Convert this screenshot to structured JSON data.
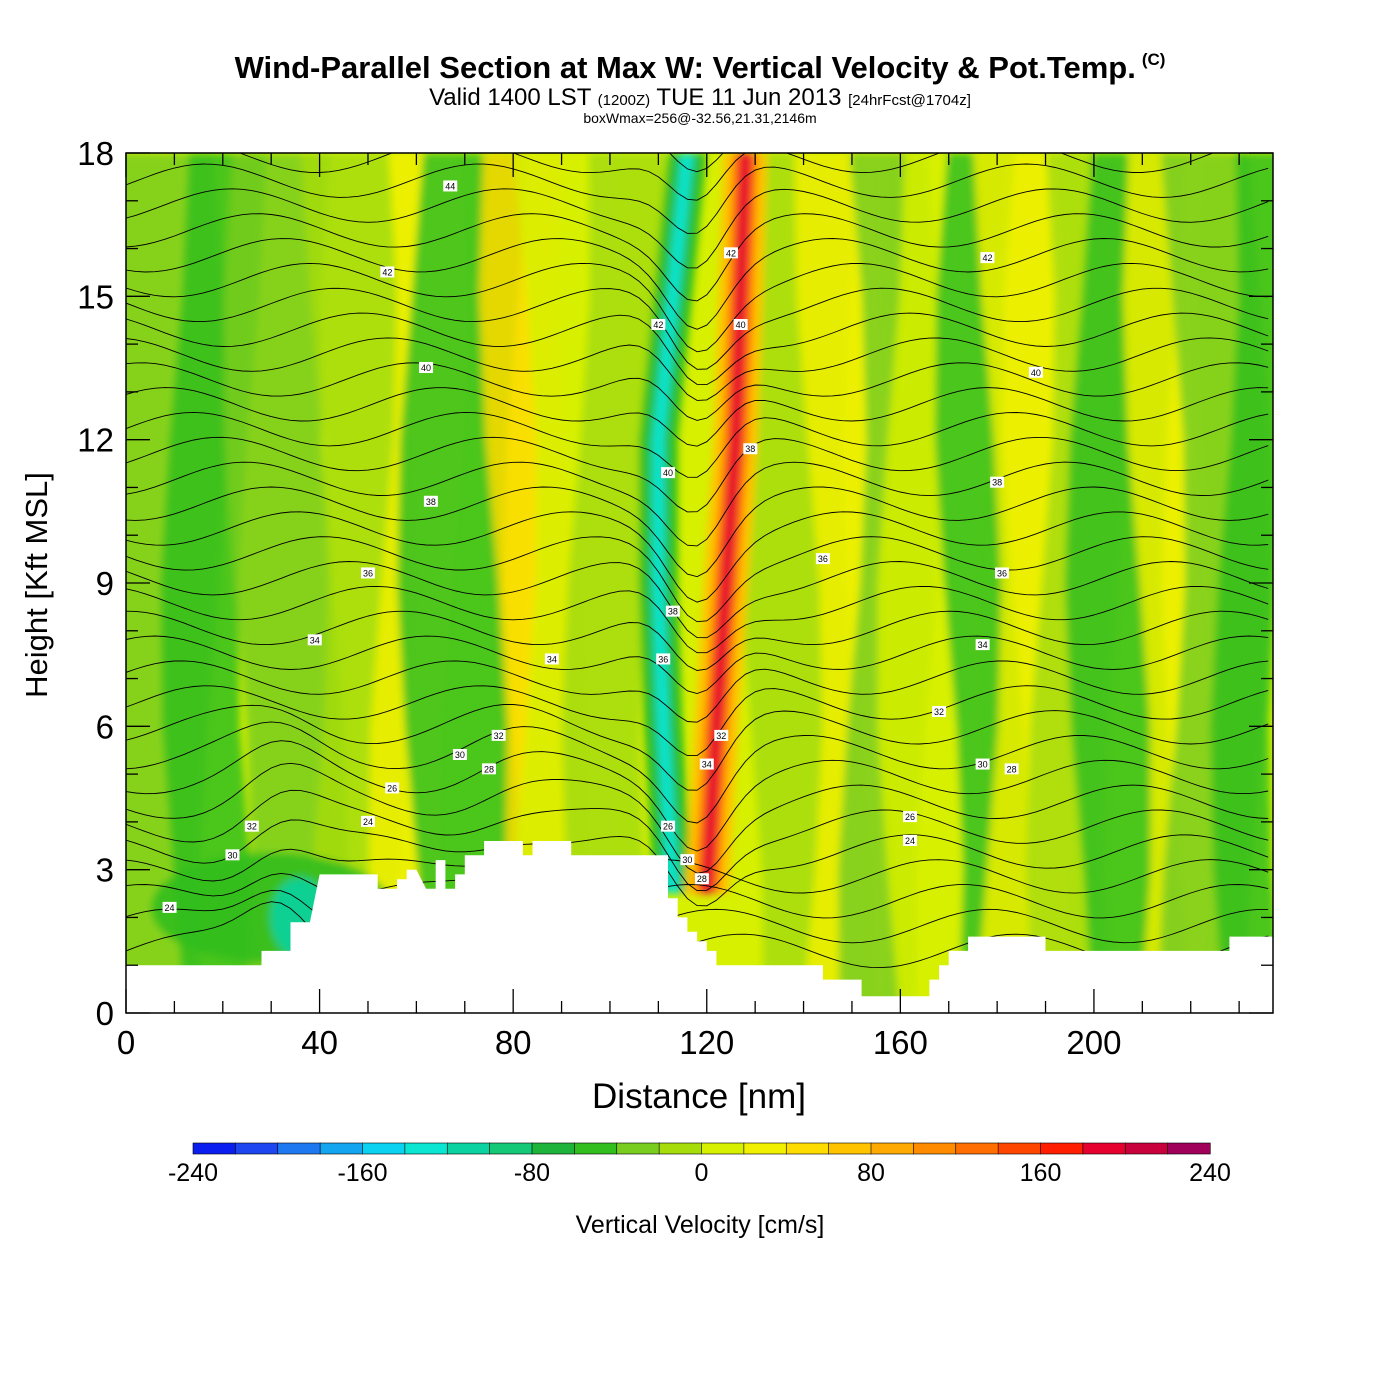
{
  "header": {
    "title": "Wind-Parallel Section at Max W: Vertical Velocity & Pot.Temp.",
    "copyright": "(C)",
    "valid_a": "Valid 1400 LST",
    "valid_z": "(1200Z)",
    "valid_b": "TUE 11 Jun 2013",
    "forecast": "[24hrFcst@1704z]",
    "boxwmax": "boxWmax=256@-32.56,21.31,2146m"
  },
  "chart_data": {
    "type": "heatmap",
    "title": "Wind-Parallel Section at Max W: Vertical Velocity & Pot.Temp.",
    "xlabel": "Distance [nm]",
    "ylabel": "Height [Kft MSL]",
    "xlim": [
      0,
      237
    ],
    "ylim": [
      0,
      18
    ],
    "x_ticks": [
      0,
      40,
      80,
      120,
      160,
      200
    ],
    "y_ticks": [
      0,
      3,
      6,
      9,
      12,
      15,
      18
    ],
    "x_tick_labels": [
      "0",
      "40",
      "80",
      "120",
      "160",
      "200"
    ],
    "y_tick_labels": [
      "0",
      "3",
      "6",
      "9",
      "12",
      "15",
      "18"
    ],
    "colorbar": {
      "label": "Vertical Velocity [cm/s]",
      "levels": [
        -240,
        -220,
        -200,
        -180,
        -160,
        -140,
        -120,
        -100,
        -80,
        -60,
        -40,
        -20,
        0,
        20,
        40,
        60,
        80,
        100,
        120,
        140,
        160,
        180,
        200,
        220,
        240
      ],
      "tick_values": [
        -240,
        -160,
        -80,
        0,
        80,
        160,
        240
      ],
      "tick_labels": [
        "-240",
        "-160",
        "-80",
        "0",
        "80",
        "160",
        "240"
      ],
      "colors": [
        "#0a1ef0",
        "#1e46f0",
        "#1e78f0",
        "#14a5f0",
        "#0ad2f0",
        "#0ae6d2",
        "#0ad2a0",
        "#14c878",
        "#1eb43c",
        "#32be1e",
        "#78cd1e",
        "#a5dc0a",
        "#d7f000",
        "#f0f000",
        "#ffdc00",
        "#ffc300",
        "#ffaa00",
        "#ff8c00",
        "#ff6e00",
        "#ff4600",
        "#ff1e00",
        "#e6002d",
        "#c8003c",
        "#a0005a"
      ]
    },
    "terrain_kft": [
      [
        0,
        1.0
      ],
      [
        28,
        1.0
      ],
      [
        28,
        1.3
      ],
      [
        34,
        1.3
      ],
      [
        34,
        1.9
      ],
      [
        38,
        1.9
      ],
      [
        40,
        2.9
      ],
      [
        52,
        2.9
      ],
      [
        52,
        2.6
      ],
      [
        56,
        2.6
      ],
      [
        56,
        2.8
      ],
      [
        58,
        2.8
      ],
      [
        58,
        3.0
      ],
      [
        60,
        3.0
      ],
      [
        62,
        2.6
      ],
      [
        64,
        2.6
      ],
      [
        64,
        3.2
      ],
      [
        66,
        3.2
      ],
      [
        66,
        2.6
      ],
      [
        68,
        2.6
      ],
      [
        68,
        2.9
      ],
      [
        70,
        2.9
      ],
      [
        70,
        3.3
      ],
      [
        74,
        3.3
      ],
      [
        74,
        3.6
      ],
      [
        82,
        3.6
      ],
      [
        82,
        3.3
      ],
      [
        84,
        3.3
      ],
      [
        84,
        3.6
      ],
      [
        92,
        3.6
      ],
      [
        92,
        3.3
      ],
      [
        112,
        3.3
      ],
      [
        112,
        2.4
      ],
      [
        114,
        2.4
      ],
      [
        114,
        2.0
      ],
      [
        116,
        2.0
      ],
      [
        116,
        1.7
      ],
      [
        118,
        1.7
      ],
      [
        118,
        1.5
      ],
      [
        120,
        1.5
      ],
      [
        120,
        1.3
      ],
      [
        122,
        1.3
      ],
      [
        122,
        1.0
      ],
      [
        144,
        1.0
      ],
      [
        144,
        0.7
      ],
      [
        152,
        0.7
      ],
      [
        152,
        0.35
      ],
      [
        166,
        0.35
      ],
      [
        166,
        0.7
      ],
      [
        168,
        0.7
      ],
      [
        168,
        1.0
      ],
      [
        170,
        1.0
      ],
      [
        170,
        1.3
      ],
      [
        174,
        1.3
      ],
      [
        174,
        1.6
      ],
      [
        190,
        1.6
      ],
      [
        190,
        1.3
      ],
      [
        228,
        1.3
      ],
      [
        228,
        1.6
      ],
      [
        237,
        1.6
      ]
    ],
    "theta_labels": [
      {
        "x": 67,
        "y": 17.3,
        "label": "44"
      },
      {
        "x": 54,
        "y": 15.5,
        "label": "42"
      },
      {
        "x": 62,
        "y": 13.5,
        "label": "40"
      },
      {
        "x": 63,
        "y": 10.7,
        "label": "38"
      },
      {
        "x": 50,
        "y": 9.2,
        "label": "36"
      },
      {
        "x": 39,
        "y": 7.8,
        "label": "34"
      },
      {
        "x": 88,
        "y": 7.4,
        "label": "34"
      },
      {
        "x": 77,
        "y": 5.8,
        "label": "32"
      },
      {
        "x": 69,
        "y": 5.4,
        "label": "30"
      },
      {
        "x": 75,
        "y": 5.1,
        "label": "28"
      },
      {
        "x": 55,
        "y": 4.7,
        "label": "26"
      },
      {
        "x": 50,
        "y": 4.0,
        "label": "24"
      },
      {
        "x": 26,
        "y": 3.9,
        "label": "32"
      },
      {
        "x": 22,
        "y": 3.3,
        "label": "30"
      },
      {
        "x": 9,
        "y": 2.2,
        "label": "24"
      },
      {
        "x": 110,
        "y": 14.4,
        "label": "42"
      },
      {
        "x": 125,
        "y": 15.9,
        "label": "42"
      },
      {
        "x": 127,
        "y": 14.4,
        "label": "40"
      },
      {
        "x": 112,
        "y": 11.3,
        "label": "40"
      },
      {
        "x": 129,
        "y": 11.8,
        "label": "38"
      },
      {
        "x": 113,
        "y": 8.4,
        "label": "38"
      },
      {
        "x": 111,
        "y": 7.4,
        "label": "36"
      },
      {
        "x": 123,
        "y": 5.8,
        "label": "32"
      },
      {
        "x": 120,
        "y": 5.2,
        "label": "34"
      },
      {
        "x": 112,
        "y": 3.9,
        "label": "26"
      },
      {
        "x": 116,
        "y": 3.2,
        "label": "30"
      },
      {
        "x": 119,
        "y": 2.8,
        "label": "28"
      },
      {
        "x": 178,
        "y": 15.8,
        "label": "42"
      },
      {
        "x": 188,
        "y": 13.4,
        "label": "40"
      },
      {
        "x": 180,
        "y": 11.1,
        "label": "38"
      },
      {
        "x": 144,
        "y": 9.5,
        "label": "36"
      },
      {
        "x": 181,
        "y": 9.2,
        "label": "36"
      },
      {
        "x": 177,
        "y": 7.7,
        "label": "34"
      },
      {
        "x": 168,
        "y": 6.3,
        "label": "32"
      },
      {
        "x": 177,
        "y": 5.2,
        "label": "30"
      },
      {
        "x": 183,
        "y": 5.1,
        "label": "28"
      },
      {
        "x": 162,
        "y": 4.1,
        "label": "26"
      },
      {
        "x": 162,
        "y": 3.6,
        "label": "24"
      }
    ],
    "updraft_axis": [
      {
        "y": 2.5,
        "x": 120
      },
      {
        "y": 6.0,
        "x": 122
      },
      {
        "y": 9.0,
        "x": 124
      },
      {
        "y": 12.0,
        "x": 126
      },
      {
        "y": 15.0,
        "x": 127
      },
      {
        "y": 18.0,
        "x": 128
      }
    ],
    "downdraft_axis": [
      {
        "y": 2.5,
        "x": 113
      },
      {
        "y": 6.0,
        "x": 111
      },
      {
        "y": 9.0,
        "x": 110
      },
      {
        "y": 12.0,
        "x": 110
      },
      {
        "y": 15.0,
        "x": 113
      },
      {
        "y": 18.0,
        "x": 116
      }
    ]
  }
}
